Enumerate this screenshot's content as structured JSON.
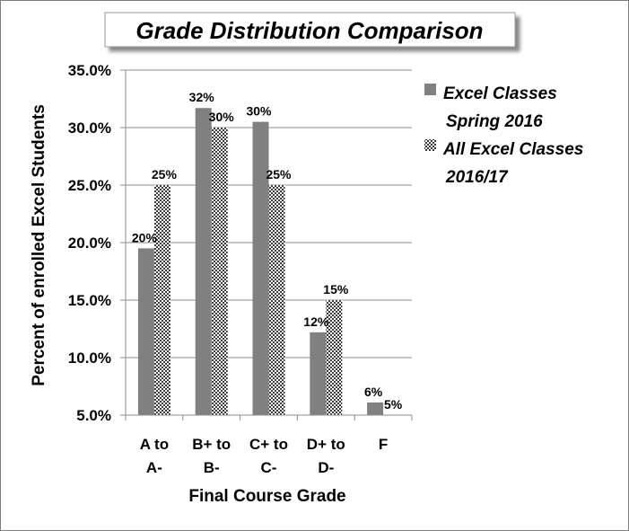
{
  "chart_data": {
    "type": "bar",
    "title": "Grade Distribution Comparison",
    "xlabel": "Final Course Grade",
    "ylabel": "Percent of enrolled Excel Students",
    "categories": [
      [
        "A to",
        "A-"
      ],
      [
        "B+ to",
        "B-"
      ],
      [
        "C+ to",
        "C-"
      ],
      [
        "D+ to",
        "D-"
      ],
      [
        "F",
        ""
      ]
    ],
    "ylim": [
      5.0,
      35.0
    ],
    "yticks": [
      "5.0%",
      "10.0%",
      "15.0%",
      "20.0%",
      "25.0%",
      "30.0%",
      "35.0%"
    ],
    "ytick_values": [
      5,
      10,
      15,
      20,
      25,
      30,
      35
    ],
    "grid": true,
    "legend_position": "right",
    "series": [
      {
        "name": [
          "Excel Classes",
          "Spring 2016"
        ],
        "values": [
          19.5,
          31.7,
          30.5,
          12.2,
          6.1
        ],
        "labels": [
          "20%",
          "32%",
          "30%",
          "12%",
          "6%"
        ],
        "color": "#808080",
        "fill": "solid"
      },
      {
        "name": [
          "All Excel Classes",
          "2016/17"
        ],
        "values": [
          25.0,
          30.0,
          25.0,
          15.0,
          5.0
        ],
        "labels": [
          "25%",
          "30%",
          "25%",
          "15%",
          "5%"
        ],
        "color": "#4d4d4d",
        "fill": "checker"
      }
    ]
  }
}
